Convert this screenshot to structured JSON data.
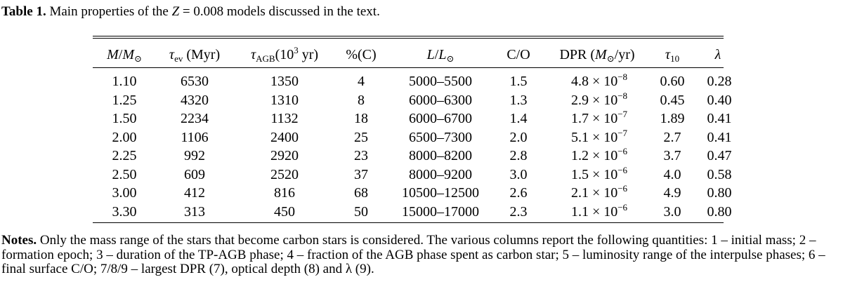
{
  "caption": {
    "label": "Table 1.",
    "text_before": " Main properties of the ",
    "z_symbol": "Z",
    "text_after": " = 0.008 models discussed in the text."
  },
  "table": {
    "headers": [
      "M/M⊙",
      "τev (Myr)",
      "τAGB(10³ yr)",
      "%(C)",
      "L/L⊙",
      "C/O",
      "DPR (M⊙/yr)",
      "τ10",
      "λ"
    ],
    "rows": [
      {
        "mass": "1.10",
        "tev": "6530",
        "tagb": "1350",
        "pc": "4",
        "lum": "5000–5500",
        "co": "1.5",
        "dpr_m": "4.8 × 10",
        "dpr_e": "−8",
        "tau10": "0.60",
        "lambda": "0.28"
      },
      {
        "mass": "1.25",
        "tev": "4320",
        "tagb": "1310",
        "pc": "8",
        "lum": "6000–6300",
        "co": "1.3",
        "dpr_m": "2.9 × 10",
        "dpr_e": "−8",
        "tau10": "0.45",
        "lambda": "0.40"
      },
      {
        "mass": "1.50",
        "tev": "2234",
        "tagb": "1132",
        "pc": "18",
        "lum": "6000–6700",
        "co": "1.4",
        "dpr_m": "1.7 × 10",
        "dpr_e": "−7",
        "tau10": "1.89",
        "lambda": "0.41"
      },
      {
        "mass": "2.00",
        "tev": "1106",
        "tagb": "2400",
        "pc": "25",
        "lum": "6500–7300",
        "co": "2.0",
        "dpr_m": "5.1 × 10",
        "dpr_e": "−7",
        "tau10": "2.7",
        "lambda": "0.41"
      },
      {
        "mass": "2.25",
        "tev": "992",
        "tagb": "2920",
        "pc": "23",
        "lum": "8000–8200",
        "co": "2.8",
        "dpr_m": "1.2 × 10",
        "dpr_e": "−6",
        "tau10": "3.7",
        "lambda": "0.47"
      },
      {
        "mass": "2.50",
        "tev": "609",
        "tagb": "2520",
        "pc": "37",
        "lum": "8000–9200",
        "co": "3.0",
        "dpr_m": "1.5 × 10",
        "dpr_e": "−6",
        "tau10": "4.0",
        "lambda": "0.58"
      },
      {
        "mass": "3.00",
        "tev": "412",
        "tagb": "816",
        "pc": "68",
        "lum": "10500–12500",
        "co": "2.6",
        "dpr_m": "2.1 × 10",
        "dpr_e": "−6",
        "tau10": "4.9",
        "lambda": "0.80"
      },
      {
        "mass": "3.30",
        "tev": "313",
        "tagb": "450",
        "pc": "50",
        "lum": "15000–17000",
        "co": "2.3",
        "dpr_m": "1.1 × 10",
        "dpr_e": "−6",
        "tau10": "3.0",
        "lambda": "0.80"
      }
    ]
  },
  "notes": {
    "label": "Notes.",
    "text": " Only the mass range of the stars that become carbon stars is considered. The various columns report the following quantities: 1 – initial mass; 2 – formation epoch; 3 – duration of the TP-AGB phase; 4 – fraction of the AGB phase spent as carbon star; 5 – luminosity range of the interpulse phases; 6 – final surface C/O; 7/8/9 – largest DPR (7), optical depth (8) and λ (9)."
  }
}
